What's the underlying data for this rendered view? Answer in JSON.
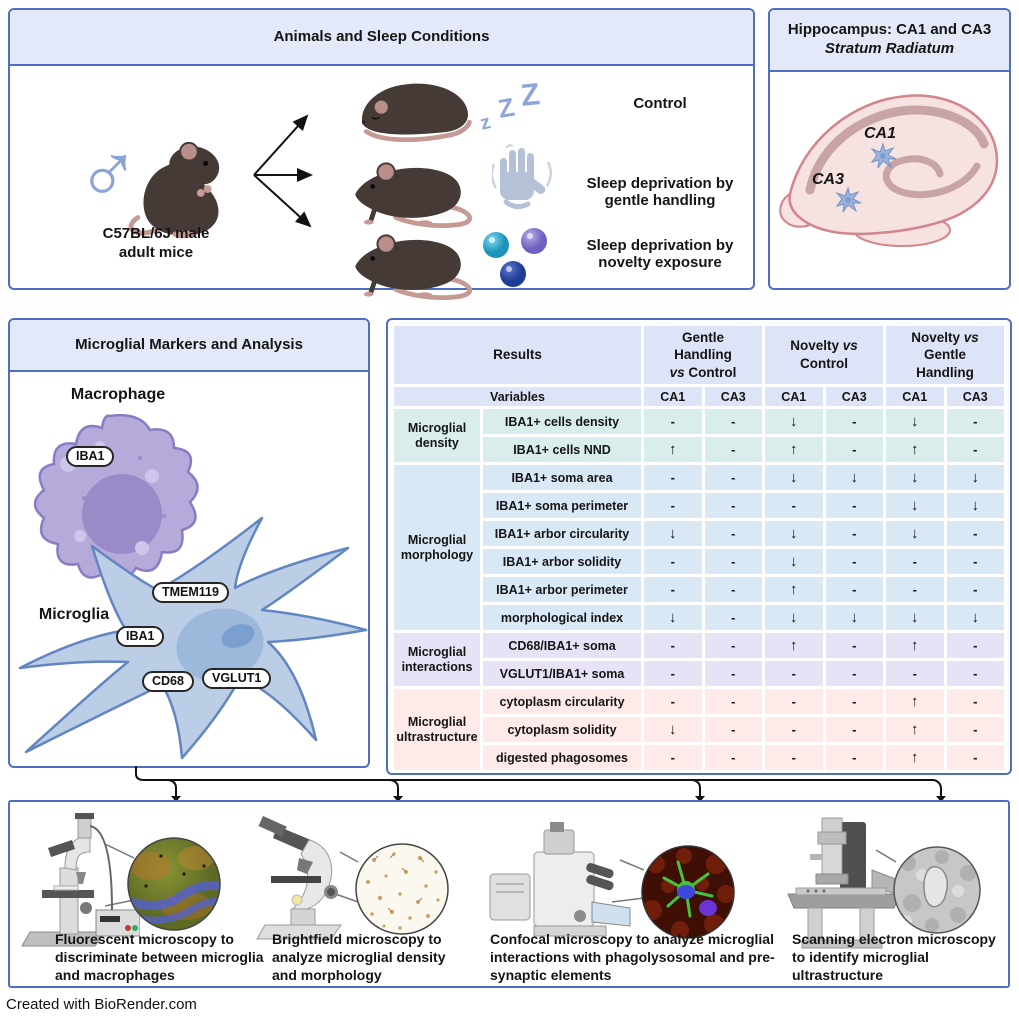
{
  "credit": "Created with BioRender.com",
  "colors": {
    "panel_border": "#4d6ec2",
    "panel_header_bg": "#e3e9f8",
    "table_header_bg": "#dee4f7",
    "density_bg": "#d9eeec",
    "morphology_bg": "#d8e8f5",
    "interactions_bg": "#e7e2f6",
    "ultrastructure_bg": "#fdeae9",
    "accent_periwinkle": "#8ba3d7",
    "mouse_body": "#463a37",
    "mouse_tail": "#c69a94",
    "macrophage_fill": "#b5aada",
    "microglia_fill": "#bccde6"
  },
  "animals_panel": {
    "title": "Animals and Sleep Conditions",
    "subject": {
      "sex_symbol": "♂",
      "caption_line1": "C57BL/6J male",
      "caption_line2": "adult mice"
    },
    "zzz_glyphs": [
      "z",
      "Z",
      "Z"
    ],
    "conditions": [
      {
        "icon": "zzz-icon",
        "label_lines": [
          "Control"
        ]
      },
      {
        "icon": "shaking-hand-icon",
        "label_lines": [
          "Sleep deprivation by",
          "gentle handling"
        ]
      },
      {
        "icon": "novelty-balls-icon",
        "label_lines": [
          "Sleep deprivation by",
          "novelty exposure"
        ]
      }
    ]
  },
  "hippocampus_panel": {
    "title_line1": "Hippocampus: CA1 and CA3",
    "title_line2": "Stratum Radiatum",
    "region_labels": [
      "CA1",
      "CA3"
    ]
  },
  "markers_panel": {
    "title": "Microglial Markers and Analysis",
    "macrophage_label": "Macrophage",
    "macrophage_marker": "IBA1",
    "microglia_label": "Microglia",
    "microglia_markers": [
      "TMEM119",
      "IBA1",
      "CD68",
      "VGLUT1"
    ]
  },
  "results_table": {
    "type": "table",
    "results_label": "Results",
    "variables_label": "Variables",
    "site_columns": [
      "CA1",
      "CA3"
    ],
    "comparison_groups": [
      {
        "parts": [
          {
            "text": "Gentle"
          },
          {
            "break": true
          },
          {
            "text": "Handling"
          },
          {
            "break": true
          },
          {
            "text": "vs",
            "italic": true
          },
          {
            "text": " Control"
          }
        ]
      },
      {
        "parts": [
          {
            "text": "Novelty "
          },
          {
            "text": "vs",
            "italic": true
          },
          {
            "break": true
          },
          {
            "text": "Control"
          }
        ]
      },
      {
        "parts": [
          {
            "text": "Novelty "
          },
          {
            "text": "vs",
            "italic": true
          },
          {
            "break": true
          },
          {
            "text": "Gentle"
          },
          {
            "break": true
          },
          {
            "text": "Handling"
          }
        ]
      }
    ],
    "row_groups": [
      {
        "label": "Microglial density",
        "bg": "#d9eeec",
        "rows": [
          {
            "variable": "IBA1+ cells density",
            "values": [
              "-",
              "-",
              "↓",
              "-",
              "↓",
              "-"
            ]
          },
          {
            "variable": "IBA1+ cells NND",
            "values": [
              "↑",
              "-",
              "↑",
              "-",
              "↑",
              "-"
            ]
          }
        ]
      },
      {
        "label": "Microglial morphology",
        "bg": "#d8e8f5",
        "rows": [
          {
            "variable": "IBA1+ soma area",
            "values": [
              "-",
              "-",
              "↓",
              "↓",
              "↓",
              "↓"
            ]
          },
          {
            "variable": "IBA1+ soma perimeter",
            "values": [
              "-",
              "-",
              "-",
              "-",
              "↓",
              "↓"
            ]
          },
          {
            "variable": "IBA1+ arbor circularity",
            "values": [
              "↓",
              "-",
              "↓",
              "-",
              "↓",
              "-"
            ]
          },
          {
            "variable": "IBA1+ arbor solidity",
            "values": [
              "-",
              "-",
              "↓",
              "-",
              "-",
              "-"
            ]
          },
          {
            "variable": "IBA1+ arbor perimeter",
            "values": [
              "-",
              "-",
              "↑",
              "-",
              "-",
              "-"
            ]
          },
          {
            "variable": "morphological index",
            "values": [
              "↓",
              "-",
              "↓",
              "↓",
              "↓",
              "↓"
            ]
          }
        ]
      },
      {
        "label": "Microglial interactions",
        "bg": "#e7e2f6",
        "rows": [
          {
            "variable": "CD68/IBA1+ soma",
            "values": [
              "-",
              "-",
              "↑",
              "-",
              "↑",
              "-"
            ]
          },
          {
            "variable": "VGLUT1/IBA1+ soma",
            "values": [
              "-",
              "-",
              "-",
              "-",
              "-",
              "-"
            ]
          }
        ]
      },
      {
        "label": "Microglial ultrastructure",
        "bg": "#fdeae9",
        "rows": [
          {
            "variable": "cytoplasm circularity",
            "values": [
              "-",
              "-",
              "-",
              "-",
              "↑",
              "-"
            ]
          },
          {
            "variable": "cytoplasm solidity",
            "values": [
              "↓",
              "-",
              "-",
              "-",
              "↑",
              "-"
            ]
          },
          {
            "variable": "digested phagosomes",
            "values": [
              "-",
              "-",
              "-",
              "-",
              "↑",
              "-"
            ]
          }
        ]
      }
    ]
  },
  "microscopy_panel": {
    "items": [
      {
        "icon": "fluorescent-microscope-icon",
        "inset": "fluorescence-micrograph",
        "caption": "Fluorescent microscopy to discriminate between microglia and macrophages"
      },
      {
        "icon": "brightfield-microscope-icon",
        "inset": "brightfield-micrograph",
        "caption": "Brightfield microscopy to analyze microglial density and morphology"
      },
      {
        "icon": "confocal-microscope-icon",
        "inset": "confocal-micrograph",
        "caption": "Confocal microscopy to analyze microglial interactions with phagolysosomal and pre-synaptic elements"
      },
      {
        "icon": "sem-microscope-icon",
        "inset": "sem-micrograph",
        "caption": "Scanning electron microscopy to identify microglial ultrastructure"
      }
    ]
  }
}
